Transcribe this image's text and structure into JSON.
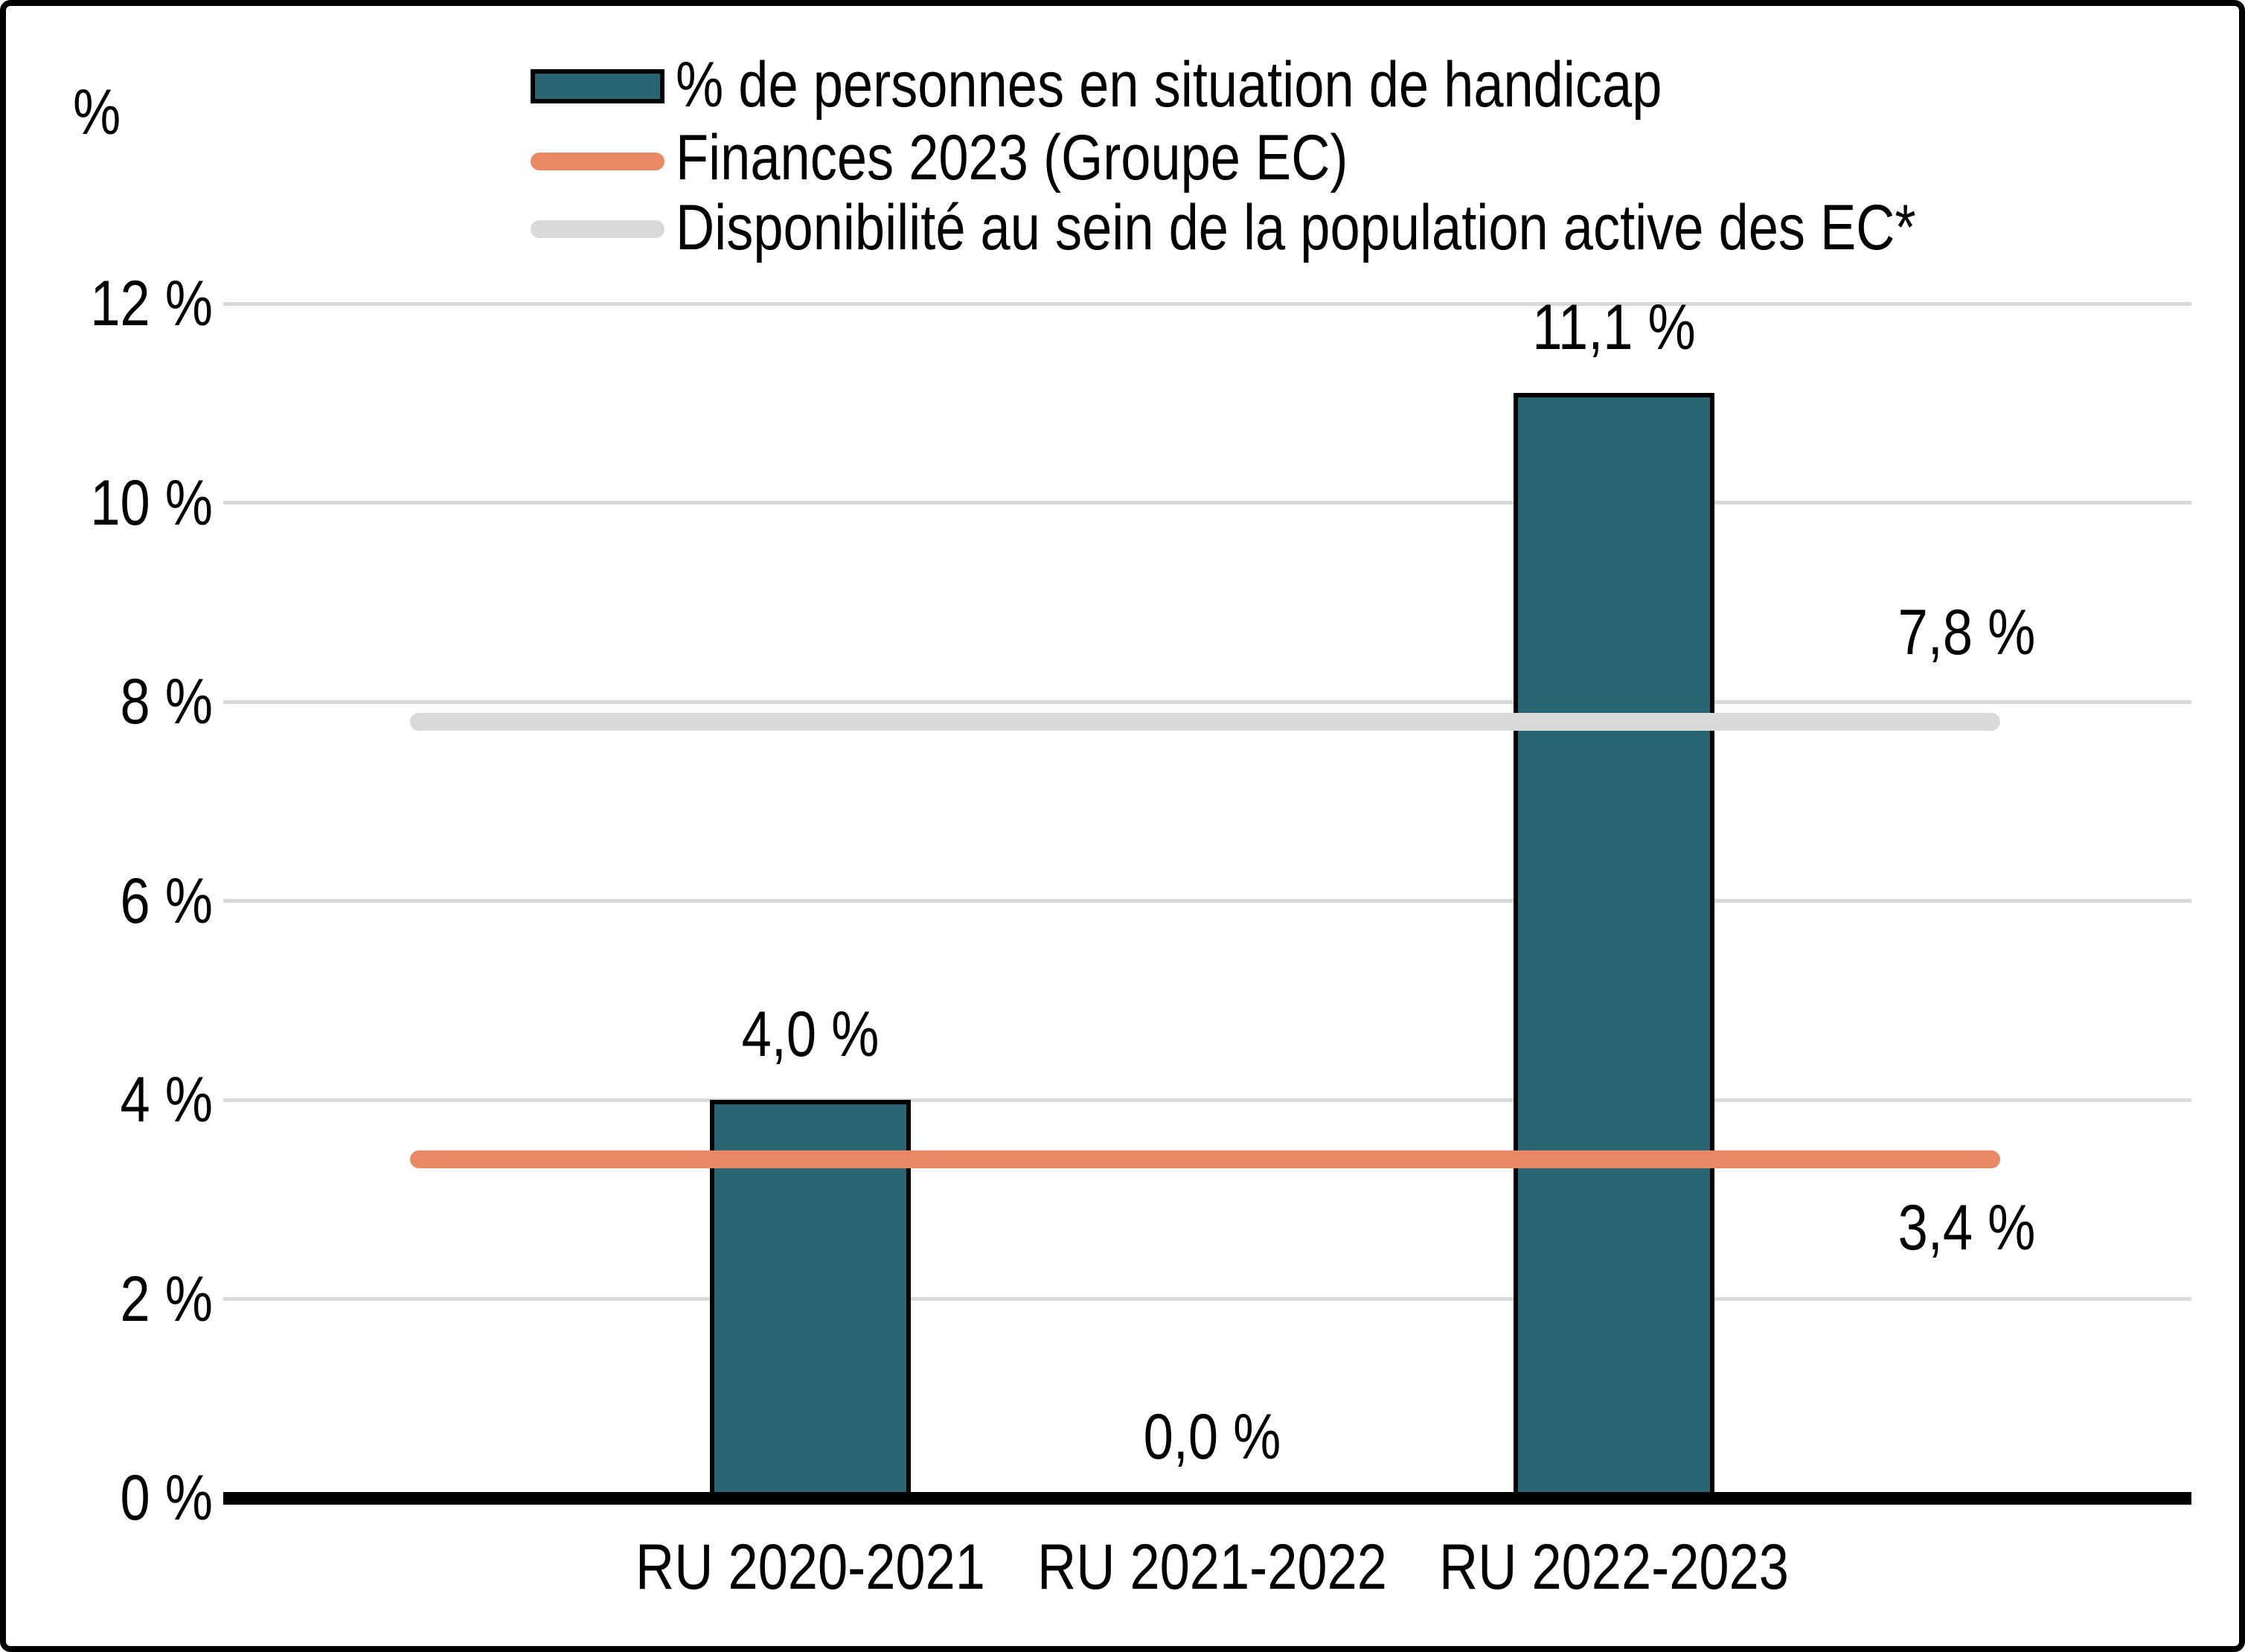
{
  "chart_data": {
    "type": "bar",
    "title": "",
    "ylabel": "%",
    "ylim": [
      0,
      12
    ],
    "grid": "horizontal",
    "legend_position": "top",
    "categories": [
      "RU 2020-2021",
      "RU 2021-2022",
      "RU 2022-2023"
    ],
    "series": [
      {
        "name": "% de personnes en situation de handicap",
        "type": "bar",
        "color": "#2A6573",
        "values": [
          4.0,
          0.0,
          11.1
        ],
        "value_labels": [
          "4,0 %",
          "0,0 %",
          "11,1 %"
        ]
      },
      {
        "name": "Finances 2023 (Groupe EC)",
        "type": "reference-line",
        "color": "#E88964",
        "value": 3.4,
        "value_label": "3,4 %"
      },
      {
        "name": "Disponibilité au sein de la population active des EC*",
        "type": "reference-line",
        "color": "#D9D9D9",
        "value": 7.8,
        "value_label": "7,8 %"
      }
    ],
    "yticks": [
      {
        "value": 12,
        "label": "12 %"
      },
      {
        "value": 10,
        "label": "10 %"
      },
      {
        "value": 8,
        "label": "8 %"
      },
      {
        "value": 6,
        "label": "6 %"
      },
      {
        "value": 4,
        "label": "4 %"
      },
      {
        "value": 2,
        "label": "2 %"
      },
      {
        "value": 0,
        "label": "0 %"
      }
    ]
  },
  "colors": {
    "bar_fill": "#2A6573",
    "bar_border": "#000000",
    "finances_line": "#E88964",
    "availability_line": "#D9D9D9",
    "gridline": "#D9D9D9",
    "axis": "#000000",
    "text": "#000000",
    "background": "#FFFFFF"
  }
}
